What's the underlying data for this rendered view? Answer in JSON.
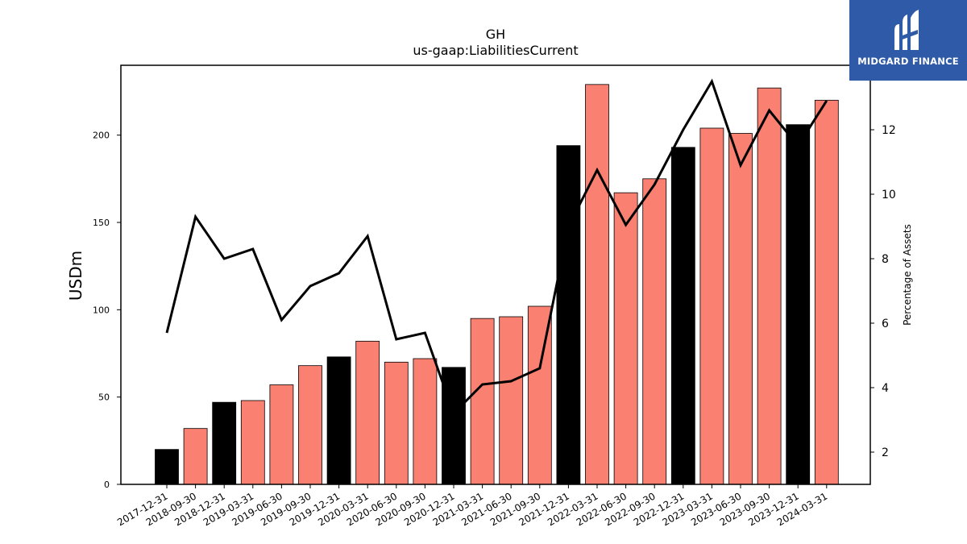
{
  "brand": {
    "name": "MIDGARD FINANCE",
    "color": "#2f5aa8"
  },
  "chart_data": {
    "type": "bar",
    "title": "GH",
    "subtitle": "us-gaap:LiabilitiesCurrent",
    "ylabel": "USDm",
    "y2label": "Percentage of Assets",
    "categories": [
      "2017-12-31",
      "2018-09-30",
      "2018-12-31",
      "2019-03-31",
      "2019-06-30",
      "2019-09-30",
      "2019-12-31",
      "2020-03-31",
      "2020-06-30",
      "2020-09-30",
      "2020-12-31",
      "2021-03-31",
      "2021-06-30",
      "2021-09-30",
      "2021-12-31",
      "2022-03-31",
      "2022-06-30",
      "2022-09-30",
      "2022-12-31",
      "2023-03-31",
      "2023-06-30",
      "2023-09-30",
      "2023-12-31",
      "2024-03-31"
    ],
    "series": [
      {
        "values": [
          20,
          32,
          47,
          48,
          57,
          68,
          73,
          82,
          70,
          72,
          67,
          95,
          96,
          102,
          194,
          229,
          167,
          175,
          193,
          204,
          201,
          227,
          206,
          220
        ],
        "bar_colors": [
          "#000000",
          "#fa8072",
          "#000000",
          "#fa8072",
          "#fa8072",
          "#fa8072",
          "#000000",
          "#fa8072",
          "#fa8072",
          "#fa8072",
          "#000000",
          "#fa8072",
          "#fa8072",
          "#fa8072",
          "#000000",
          "#fa8072",
          "#fa8072",
          "#fa8072",
          "#000000",
          "#fa8072",
          "#fa8072",
          "#fa8072",
          "#000000",
          "#fa8072"
        ]
      },
      {
        "type": "line",
        "axis": "right",
        "values": [
          5.7,
          9.3,
          8.0,
          8.3,
          6.1,
          7.15,
          7.55,
          8.7,
          5.5,
          5.7,
          3.2,
          4.1,
          4.2,
          4.6,
          9.0,
          10.75,
          9.05,
          10.3,
          12.0,
          13.5,
          10.9,
          12.6,
          11.5,
          12.9
        ],
        "color": "#000000"
      }
    ],
    "ylim": [
      0,
      240
    ],
    "y2lim": [
      1,
      14
    ],
    "yticks": [
      0,
      50,
      100,
      150,
      200
    ],
    "y2ticks": [
      2,
      4,
      6,
      8,
      10,
      12
    ],
    "grid": false,
    "legend": "none"
  }
}
